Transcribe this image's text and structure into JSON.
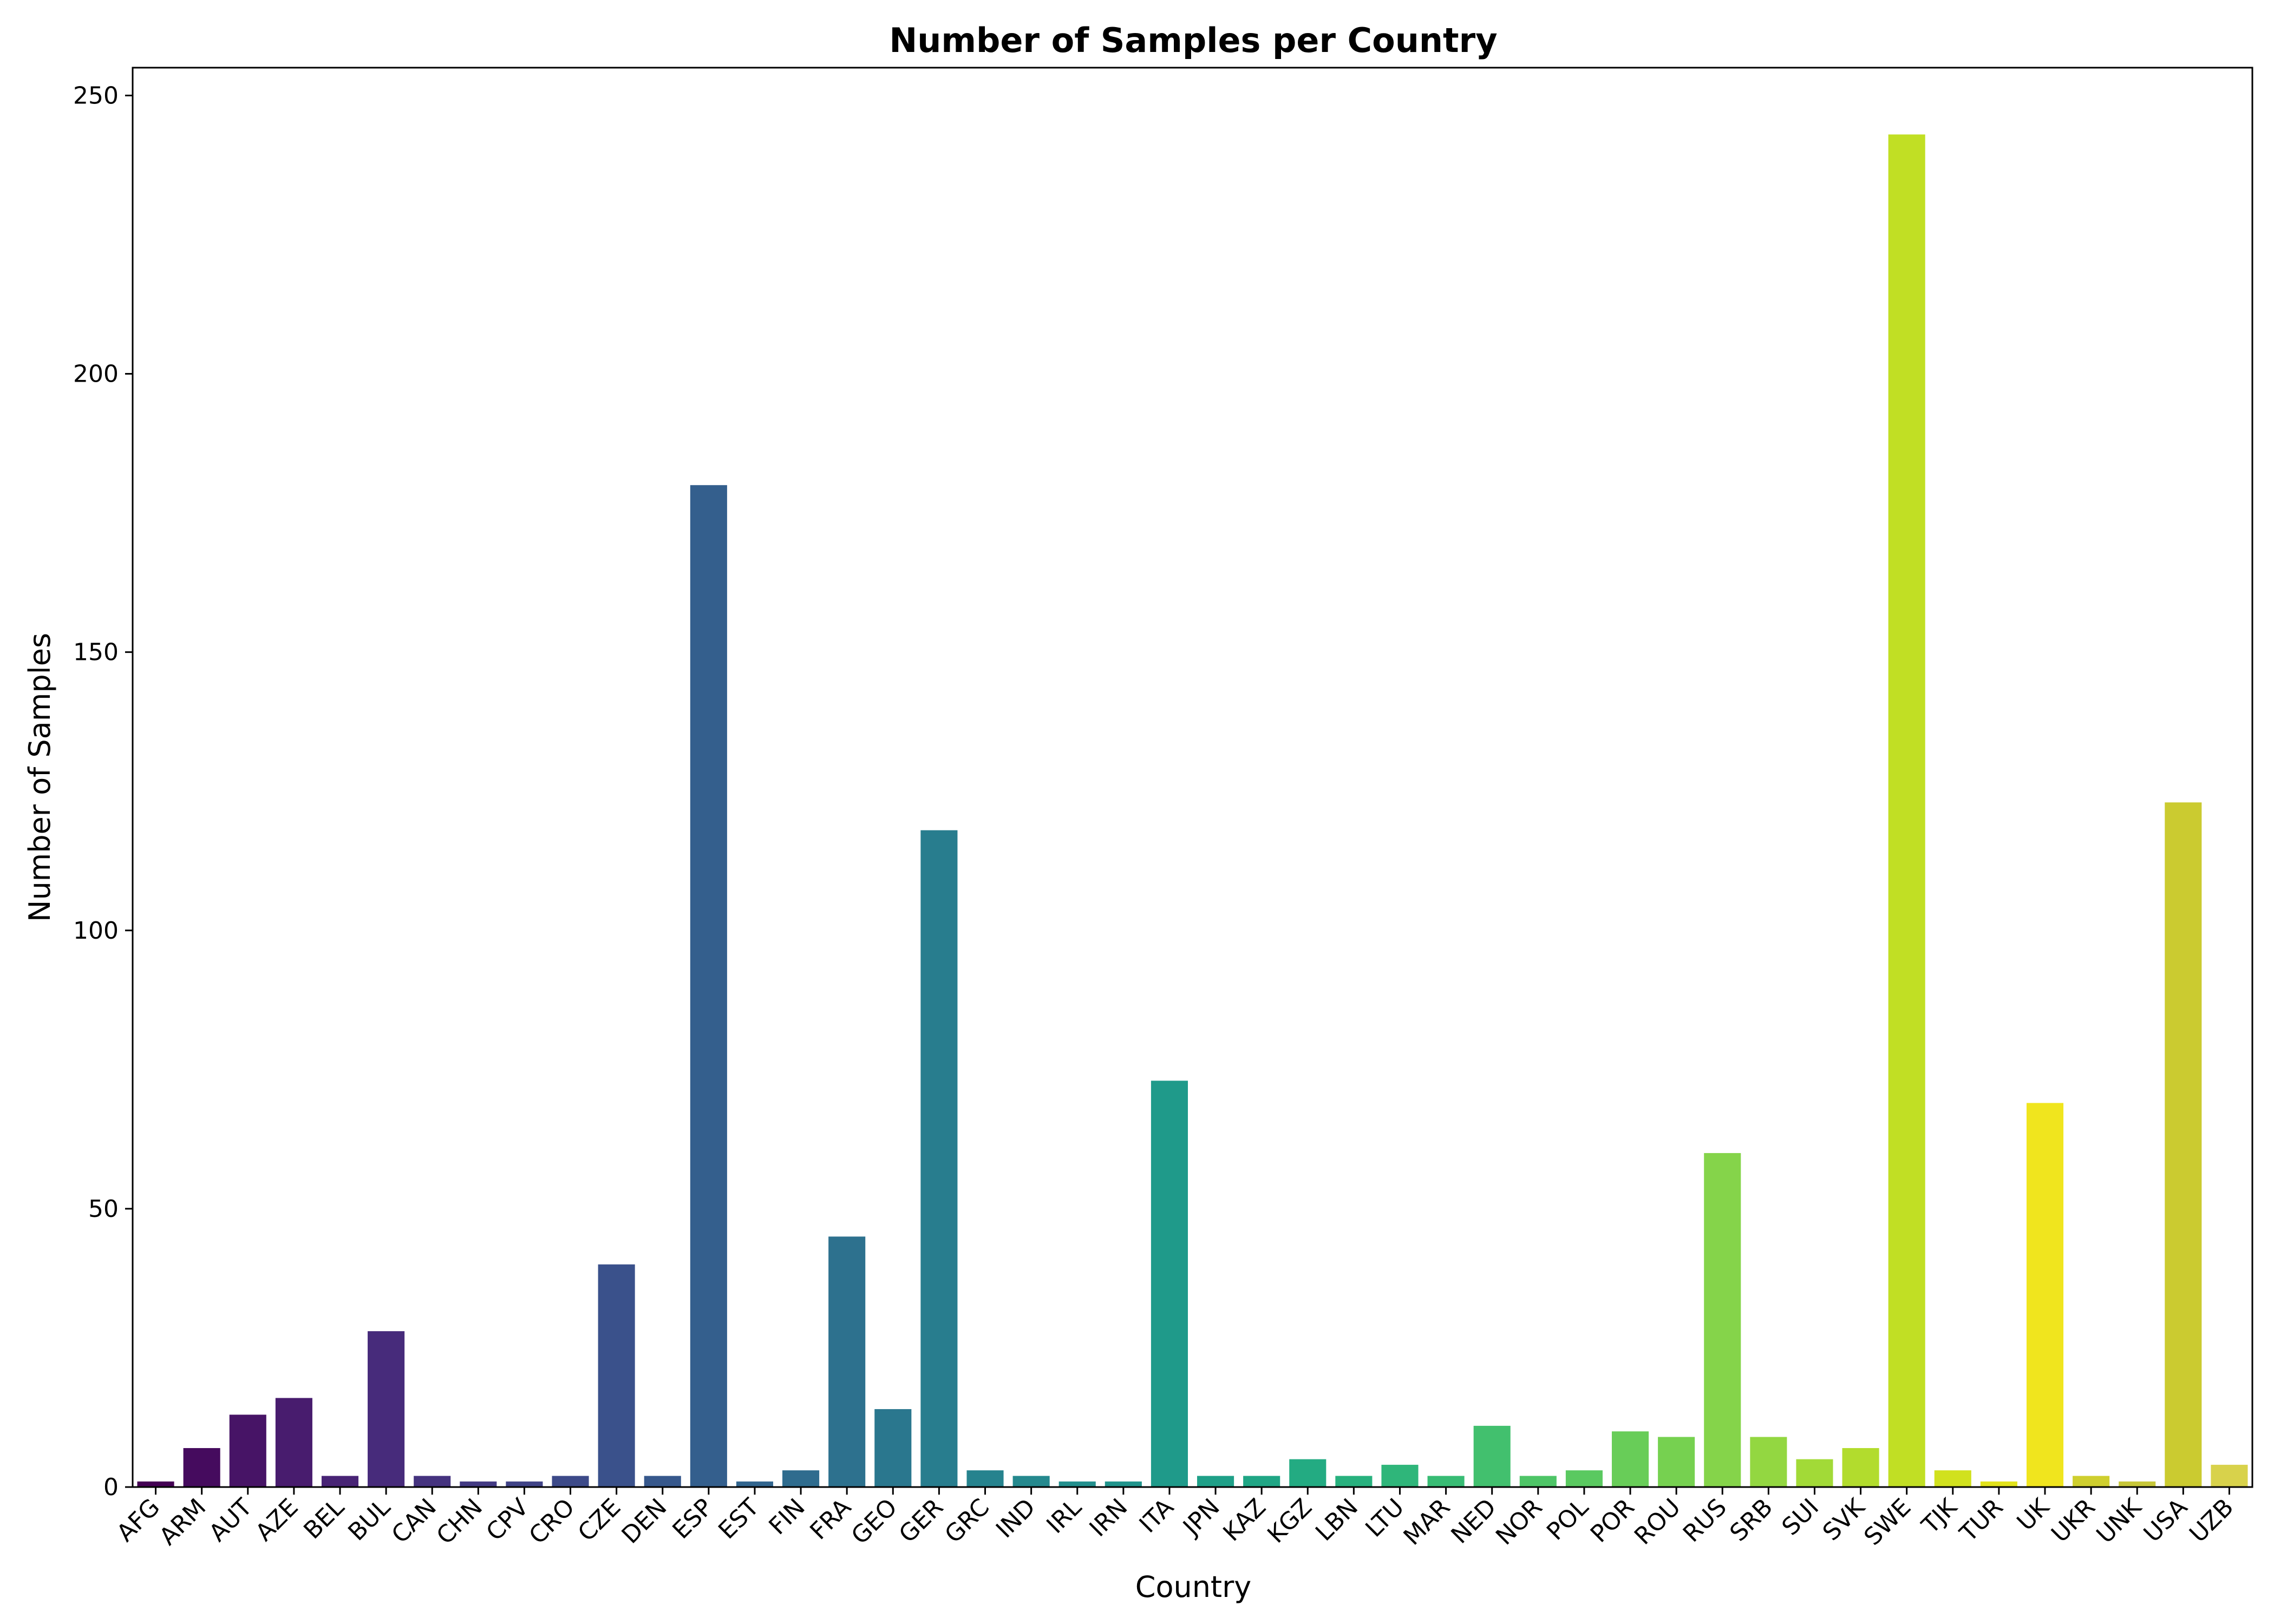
{
  "chart_data": {
    "type": "bar",
    "title": "Number of Samples per Country",
    "xlabel": "Country",
    "ylabel": "Number of Samples",
    "ylim": [
      0,
      255
    ],
    "yticks": [
      0,
      50,
      100,
      150,
      200,
      250
    ],
    "grid": false,
    "legend": "none",
    "colormap": "viridis",
    "categories": [
      "AFG",
      "ARM",
      "AUT",
      "AZE",
      "BEL",
      "BUL",
      "CAN",
      "CHN",
      "CPV",
      "CRO",
      "CZE",
      "DEN",
      "ESP",
      "EST",
      "FIN",
      "FRA",
      "GEO",
      "GER",
      "GRC",
      "IND",
      "IRL",
      "IRN",
      "ITA",
      "JPN",
      "KAZ",
      "KGZ",
      "LBN",
      "LTU",
      "MAR",
      "NED",
      "NOR",
      "POL",
      "POR",
      "ROU",
      "RUS",
      "SRB",
      "SUI",
      "SVK",
      "SWE",
      "TJK",
      "TUR",
      "UK",
      "UKR",
      "UNK",
      "USA",
      "UZB"
    ],
    "values": [
      1,
      7,
      13,
      16,
      2,
      28,
      2,
      1,
      1,
      2,
      40,
      2,
      180,
      1,
      3,
      45,
      14,
      118,
      3,
      2,
      1,
      1,
      73,
      2,
      2,
      5,
      2,
      4,
      2,
      11,
      2,
      3,
      10,
      9,
      60,
      9,
      5,
      7,
      243,
      3,
      1,
      69,
      2,
      1,
      123,
      4
    ],
    "colors": [
      "#440154",
      "#450b5e",
      "#471466",
      "#481c6e",
      "#482475",
      "#472b7b",
      "#45337f",
      "#433a83",
      "#404387",
      "#3d4a89",
      "#3a518b",
      "#37588c",
      "#345f8d",
      "#32658e",
      "#2f6c8e",
      "#2d718e",
      "#2a778e",
      "#287d8e",
      "#26838e",
      "#25898e",
      "#238f8d",
      "#21948c",
      "#1f9a8a",
      "#1fa088",
      "#20a685",
      "#23ab82",
      "#28b17e",
      "#2fb67a",
      "#38bc74",
      "#42c06e",
      "#4ec567",
      "#5ac960",
      "#68cd58",
      "#76d150",
      "#85d44a",
      "#93d741",
      "#a2da37",
      "#b2dc2d",
      "#c1df24",
      "#d1e11e",
      "#e1e21b",
      "#f0e51e",
      "#cfcf2f",
      "#c7c73a",
      "#cbcb30",
      "#d8d24b"
    ]
  }
}
